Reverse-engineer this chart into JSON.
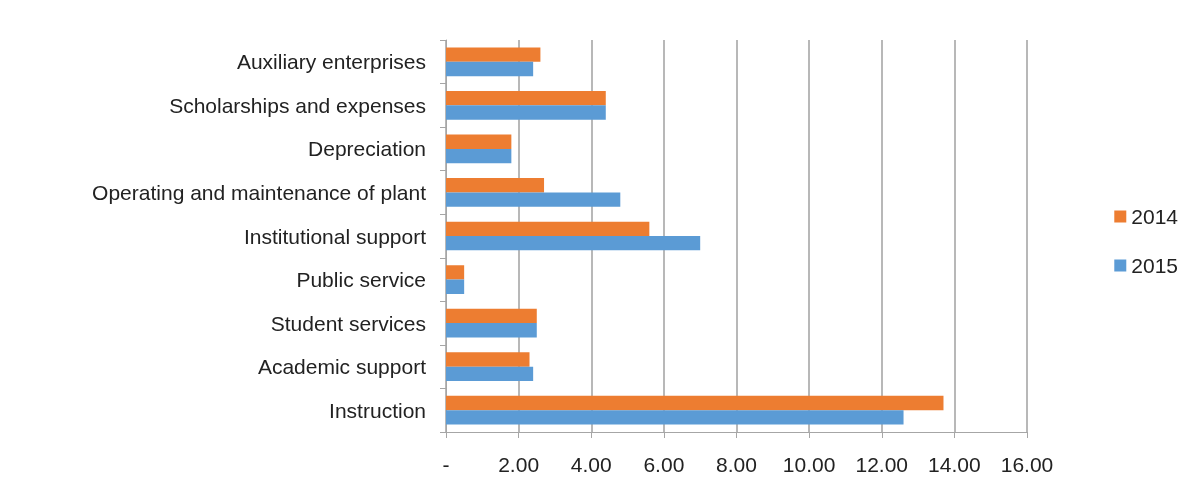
{
  "chart_data": {
    "type": "bar",
    "orientation": "horizontal",
    "categories": [
      "Auxiliary enterprises",
      "Scholarships and expenses",
      "Depreciation",
      "Operating and maintenance of plant",
      "Institutional support",
      "Public service",
      "Student services",
      "Academic support",
      "Instruction"
    ],
    "series": [
      {
        "name": "2014",
        "color": "#ed7d31",
        "values": [
          2.6,
          4.4,
          1.8,
          2.7,
          5.6,
          0.5,
          2.5,
          2.3,
          13.7
        ]
      },
      {
        "name": "2015",
        "color": "#5b9bd5",
        "values": [
          2.4,
          4.4,
          1.8,
          4.8,
          7.0,
          0.5,
          2.5,
          2.4,
          12.6
        ]
      }
    ],
    "xlim": [
      0,
      16
    ],
    "xticks": [
      {
        "value": 0,
        "label": "-"
      },
      {
        "value": 2,
        "label": "2.00"
      },
      {
        "value": 4,
        "label": "4.00"
      },
      {
        "value": 6,
        "label": "6.00"
      },
      {
        "value": 8,
        "label": "8.00"
      },
      {
        "value": 10,
        "label": "10.00"
      },
      {
        "value": 12,
        "label": "12.00"
      },
      {
        "value": 14,
        "label": "14.00"
      },
      {
        "value": 16,
        "label": "16.00"
      }
    ],
    "grid": "x",
    "legend": "right"
  }
}
